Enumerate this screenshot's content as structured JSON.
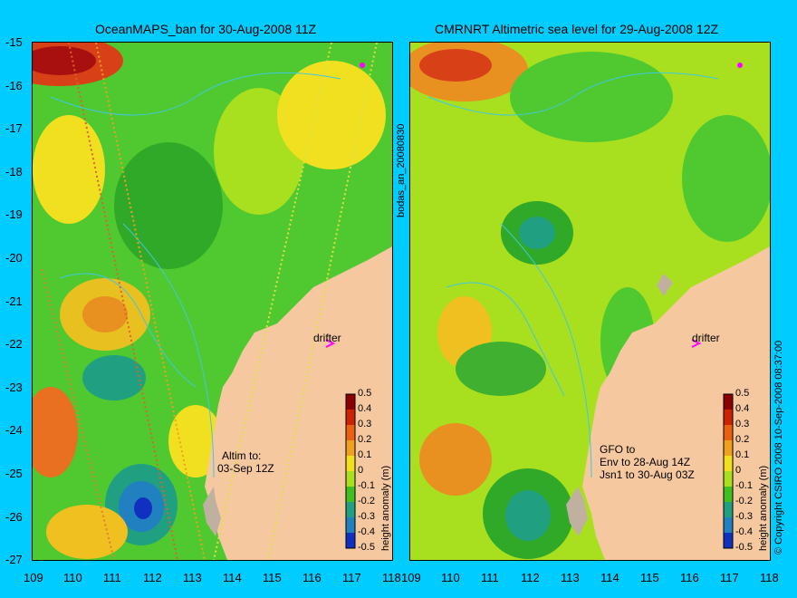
{
  "left_panel": {
    "title": "OceanMAPS_ban for 30-Aug-2008 11Z",
    "side_label": "bodas_an_20080830",
    "drifter_label": "drifter",
    "altim_label": "Altim to:",
    "altim_date": "03-Sep 12Z"
  },
  "right_panel": {
    "title": "CMRNRT Altimetric sea level  for 29-Aug-2008 12Z",
    "drifter_label": "drifter",
    "gfo_line": "GFO to",
    "env_line": "Env to 28-Aug 14Z",
    "jsn_line": "Jsn1 to 30-Aug 03Z",
    "copyright": "© Copyright CSIRO 2008   10-Sep-2008 08:37:00"
  },
  "axes": {
    "lat_ticks": [
      "-15",
      "-16",
      "-17",
      "-18",
      "-19",
      "-20",
      "-21",
      "-22",
      "-23",
      "-24",
      "-25",
      "-26",
      "-27"
    ],
    "lon_ticks": [
      "109",
      "110",
      "111",
      "112",
      "113",
      "114",
      "115",
      "116",
      "117",
      "118"
    ]
  },
  "colorbar": {
    "label": "height anomaly (m)",
    "ticks": [
      "0.5",
      "0.4",
      "0.3",
      "0.2",
      "0.1",
      "0",
      "-0.1",
      "-0.2",
      "-0.3",
      "-0.4",
      "-0.5"
    ],
    "colors": [
      "#8b0000",
      "#cc2200",
      "#e86010",
      "#f0a020",
      "#f0e020",
      "#a8e020",
      "#40c020",
      "#20a080",
      "#2080c0",
      "#1030c0",
      "#0a0a80"
    ]
  },
  "colors": {
    "background": "#00ccff",
    "land": "#f5c8a0",
    "shelf": "#c0b0a0",
    "ocean_green": "#50c830",
    "contour": "#40c8e0",
    "drifter": "#ff00ff"
  },
  "icons": {
    "drifter_marker": "chevron-right-icon"
  }
}
